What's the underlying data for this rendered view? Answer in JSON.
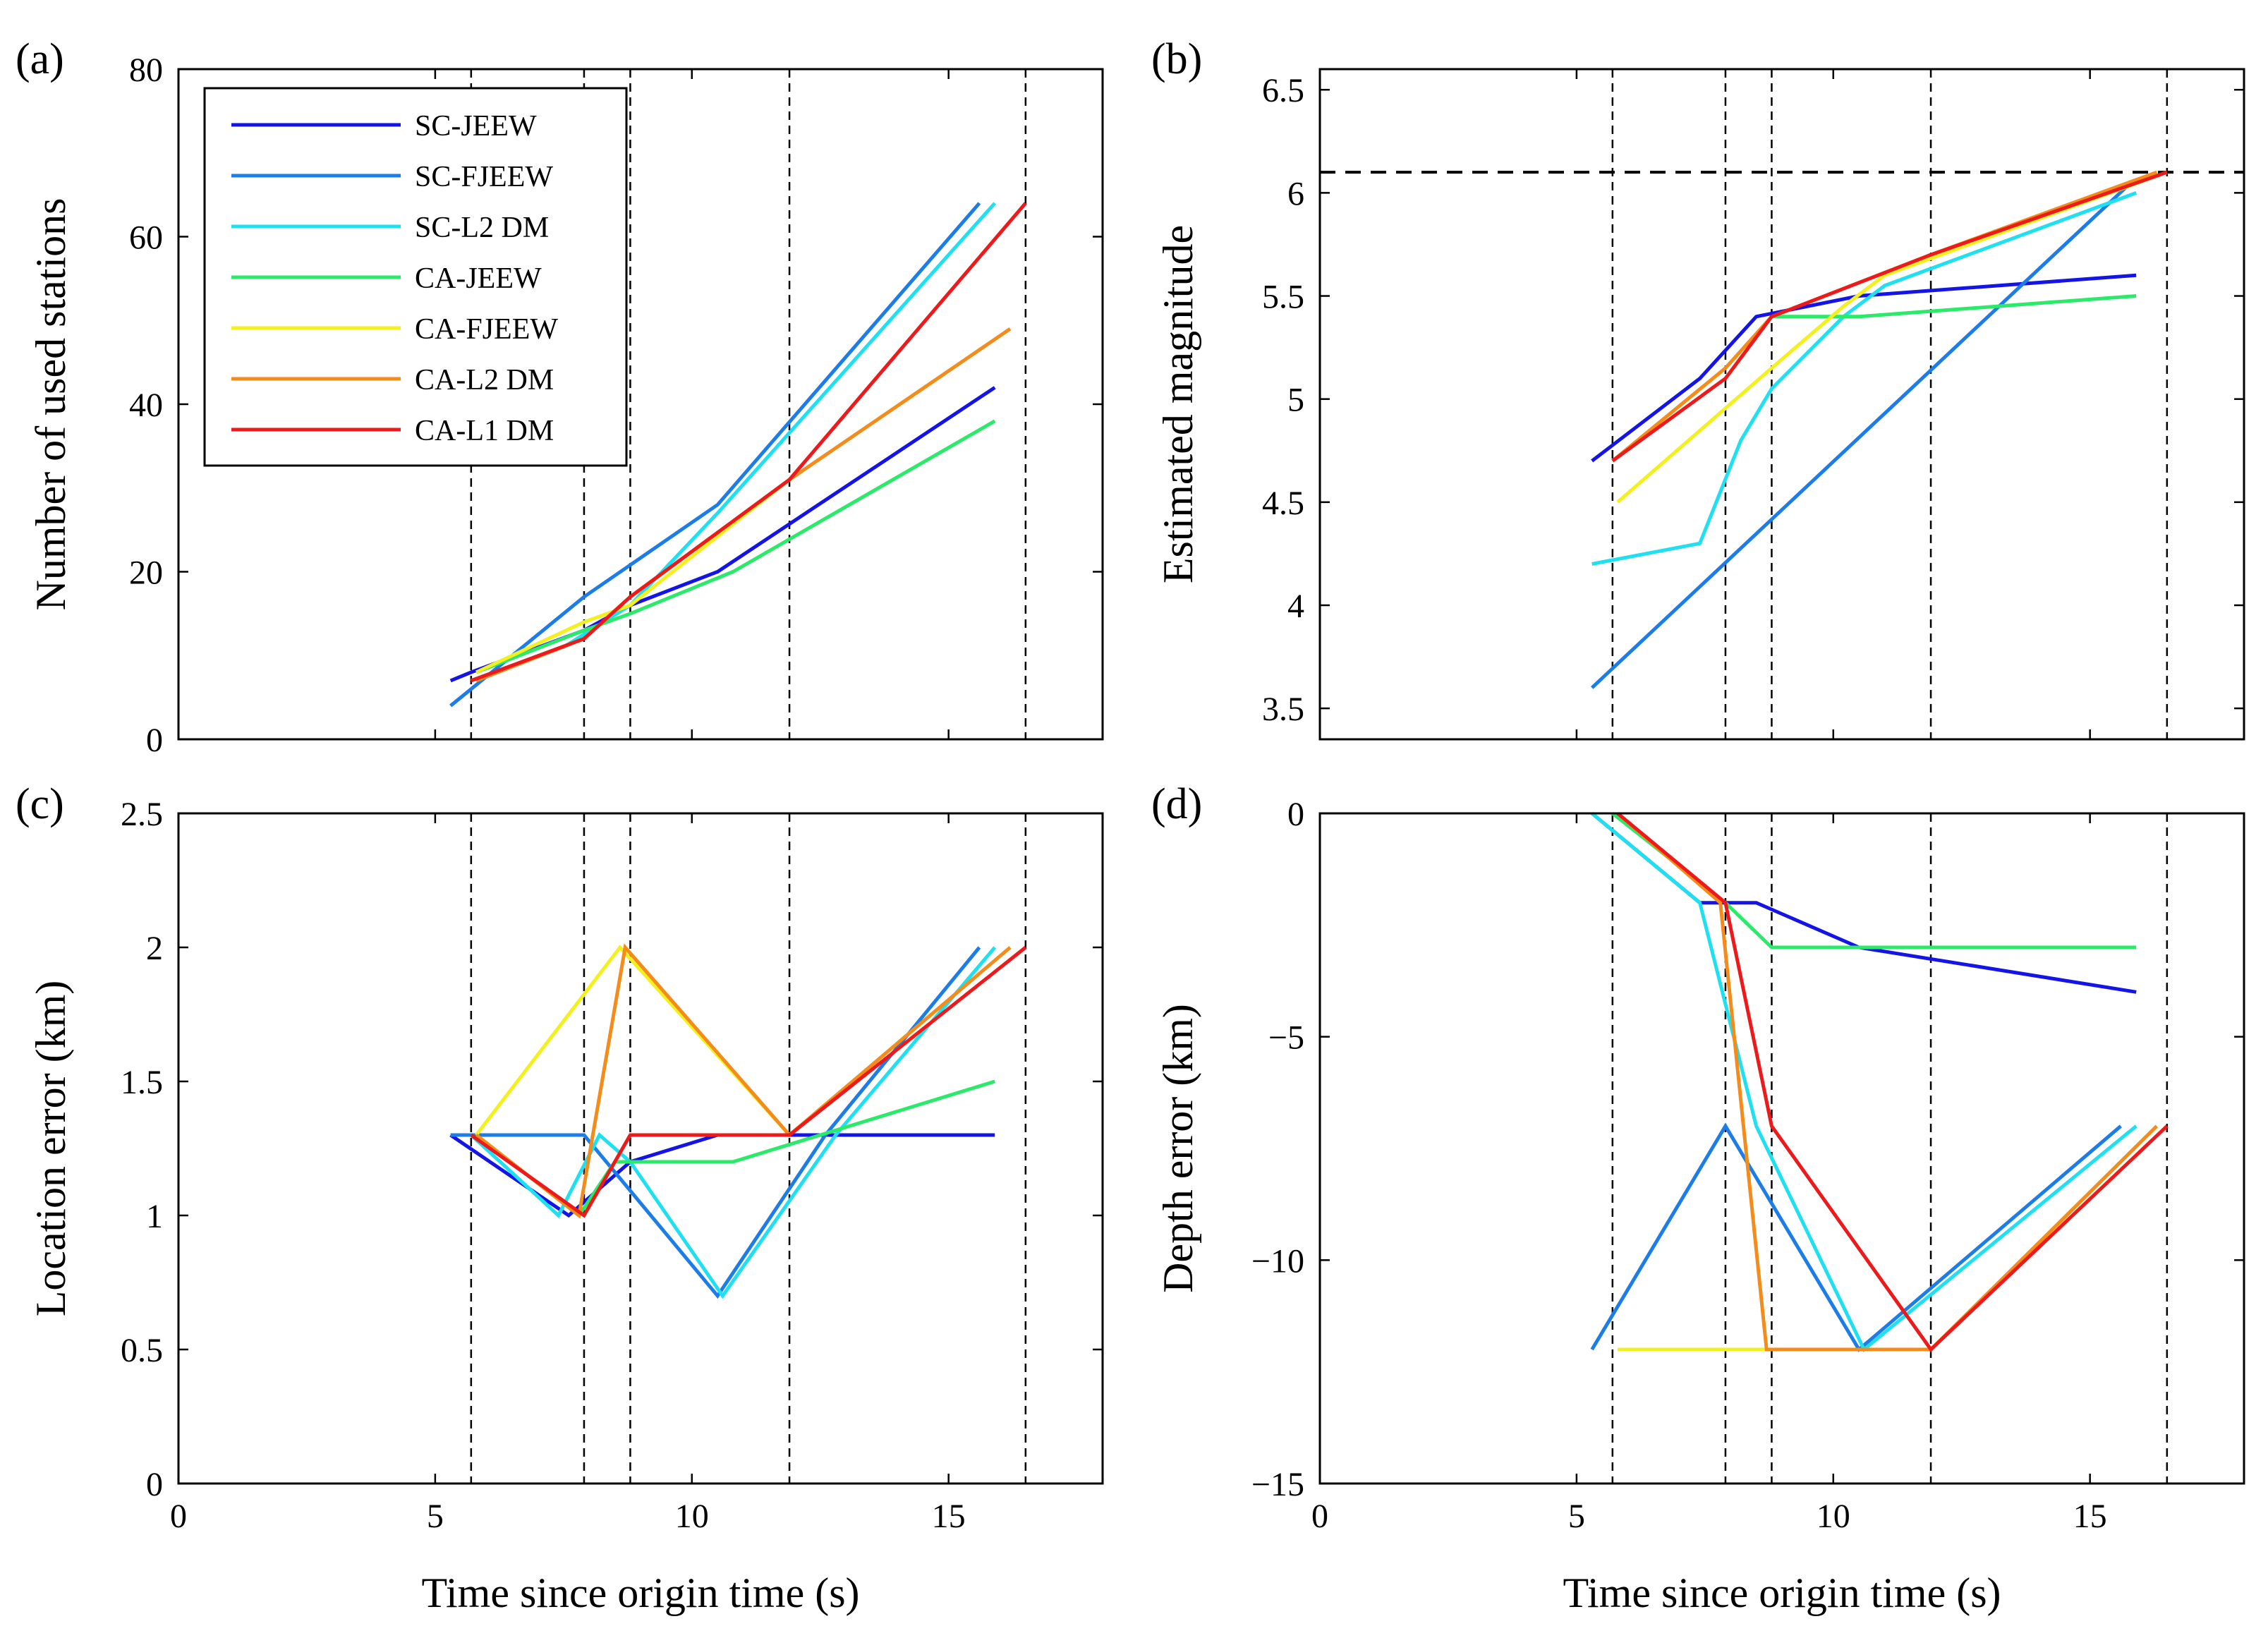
{
  "chart_data": [
    {
      "type": "line",
      "panel_label": "(a)",
      "xlabel": "",
      "ylabel": "Number of used stations",
      "xlim": [
        0,
        18
      ],
      "ylim": [
        0,
        80
      ],
      "xticks": [
        "",
        "",
        "",
        "",
        ""
      ],
      "xtick_values": [
        0,
        5,
        10,
        15
      ],
      "yticks": [
        "0",
        "20",
        "40",
        "60",
        "80"
      ],
      "ytick_values": [
        0,
        20,
        40,
        60,
        80
      ],
      "vlines": [
        5.7,
        7.9,
        8.8,
        11.9,
        16.5
      ],
      "legend": {
        "position": "top-left",
        "entries": [
          "SC-JEEW",
          "SC-FJEEW",
          "SC-L2 DM",
          "CA-JEEW",
          "CA-FJEEW",
          "CA-L2 DM",
          "CA-L1 DM"
        ]
      },
      "series": [
        {
          "name": "SC-JEEW",
          "color": "#1414e6",
          "x": [
            5.3,
            5.7,
            7.9,
            8.8,
            10.5,
            15.9
          ],
          "y": [
            7,
            8,
            13,
            16,
            20,
            42
          ]
        },
        {
          "name": "SC-FJEEW",
          "color": "#1c7ce8",
          "x": [
            5.3,
            6.5,
            7.9,
            10.5,
            15.6
          ],
          "y": [
            4,
            10,
            17,
            28,
            64
          ]
        },
        {
          "name": "SC-L2 DM",
          "color": "#1ee0f0",
          "x": [
            5.7,
            7.5,
            8.8,
            10.5,
            15.9
          ],
          "y": [
            7,
            11,
            16,
            27,
            64
          ]
        },
        {
          "name": "CA-JEEW",
          "color": "#2bea6a",
          "x": [
            5.8,
            7.9,
            8.8,
            10.8,
            15.9
          ],
          "y": [
            8,
            13,
            15,
            20,
            38
          ]
        },
        {
          "name": "CA-FJEEW",
          "color": "#f2f01e",
          "x": [
            5.8,
            7.9,
            8.8,
            11.9
          ],
          "y": [
            8,
            14,
            16,
            31
          ]
        },
        {
          "name": "CA-L2 DM",
          "color": "#f38c1a",
          "x": [
            5.8,
            7.9,
            8.8,
            11.9,
            16.2
          ],
          "y": [
            7,
            12,
            17,
            31,
            49
          ]
        },
        {
          "name": "CA-L1 DM",
          "color": "#ec1a1a",
          "x": [
            5.7,
            7.9,
            8.8,
            11.9,
            16.5
          ],
          "y": [
            7,
            12,
            17,
            31,
            64
          ]
        }
      ]
    },
    {
      "type": "line",
      "panel_label": "(b)",
      "xlabel": "",
      "ylabel": "Estimated magnitude",
      "xlim": [
        0,
        18
      ],
      "ylim": [
        3.35,
        6.6
      ],
      "xticks": [
        "",
        "",
        "",
        "",
        ""
      ],
      "xtick_values": [
        0,
        5,
        10,
        15
      ],
      "yticks": [
        "3.5",
        "4",
        "4.5",
        "5",
        "5.5",
        "6",
        "6.5"
      ],
      "ytick_values": [
        3.5,
        4,
        4.5,
        5,
        5.5,
        6,
        6.5
      ],
      "vlines": [
        5.7,
        7.9,
        8.8,
        11.9,
        16.5
      ],
      "hline": 6.1,
      "series": [
        {
          "name": "SC-JEEW",
          "color": "#1414e6",
          "x": [
            5.3,
            7.4,
            8.5,
            10.5,
            15.9
          ],
          "y": [
            4.7,
            5.1,
            5.4,
            5.5,
            5.6
          ]
        },
        {
          "name": "SC-FJEEW",
          "color": "#1c7ce8",
          "x": [
            5.3,
            15.8
          ],
          "y": [
            3.6,
            6.05
          ]
        },
        {
          "name": "SC-L2 DM",
          "color": "#1ee0f0",
          "x": [
            5.3,
            7.4,
            8.2,
            8.8,
            10.2,
            11.0,
            15.9
          ],
          "y": [
            4.2,
            4.3,
            4.8,
            5.05,
            5.4,
            5.55,
            6.0
          ]
        },
        {
          "name": "CA-JEEW",
          "color": "#2bea6a",
          "x": [
            8.8,
            10.5,
            15.9
          ],
          "y": [
            5.4,
            5.4,
            5.5
          ]
        },
        {
          "name": "CA-FJEEW",
          "color": "#f2f01e",
          "x": [
            5.8,
            8.8,
            10.2,
            11.0,
            16.5
          ],
          "y": [
            4.5,
            5.15,
            5.45,
            5.6,
            6.1
          ]
        },
        {
          "name": "CA-L2 DM",
          "color": "#f38c1a",
          "x": [
            5.7,
            7.9,
            8.8,
            11.9,
            16.3
          ],
          "y": [
            4.7,
            5.15,
            5.4,
            5.7,
            6.1
          ]
        },
        {
          "name": "CA-L1 DM",
          "color": "#ec1a1a",
          "x": [
            5.7,
            7.9,
            8.8,
            11.9,
            16.5
          ],
          "y": [
            4.7,
            5.1,
            5.4,
            5.7,
            6.1
          ]
        }
      ]
    },
    {
      "type": "line",
      "panel_label": "(c)",
      "xlabel": "Time since origin time (s)",
      "ylabel": "Location error (km)",
      "xlim": [
        0,
        18
      ],
      "ylim": [
        0,
        2.5
      ],
      "xticks": [
        "0",
        "5",
        "10",
        "15"
      ],
      "xtick_values": [
        0,
        5,
        10,
        15
      ],
      "yticks": [
        "0",
        "0.5",
        "1",
        "1.5",
        "2",
        "2.5"
      ],
      "ytick_values": [
        0,
        0.5,
        1,
        1.5,
        2,
        2.5
      ],
      "vlines": [
        5.7,
        7.9,
        8.8,
        11.9,
        16.5
      ],
      "series": [
        {
          "name": "SC-JEEW",
          "color": "#1414e6",
          "x": [
            5.3,
            7.6,
            8.8,
            10.5,
            15.9
          ],
          "y": [
            1.3,
            1.0,
            1.2,
            1.3,
            1.3
          ]
        },
        {
          "name": "SC-FJEEW",
          "color": "#1c7ce8",
          "x": [
            5.3,
            7.9,
            10.5,
            12.6,
            15.6
          ],
          "y": [
            1.3,
            1.3,
            0.7,
            1.3,
            2.0
          ]
        },
        {
          "name": "SC-L2 DM",
          "color": "#1ee0f0",
          "x": [
            5.7,
            7.4,
            8.2,
            8.8,
            10.6,
            12.8,
            15.9
          ],
          "y": [
            1.3,
            1.0,
            1.3,
            1.2,
            0.7,
            1.3,
            2.0
          ]
        },
        {
          "name": "CA-JEEW",
          "color": "#2bea6a",
          "x": [
            5.8,
            7.8,
            8.5,
            10.8,
            15.9
          ],
          "y": [
            1.3,
            1.0,
            1.2,
            1.2,
            1.5
          ]
        },
        {
          "name": "CA-FJEEW",
          "color": "#f2f01e",
          "x": [
            5.8,
            8.6,
            11.9
          ],
          "y": [
            1.3,
            2.0,
            1.3
          ]
        },
        {
          "name": "CA-L2 DM",
          "color": "#f38c1a",
          "x": [
            5.8,
            7.8,
            8.7,
            11.9,
            16.2
          ],
          "y": [
            1.3,
            1.0,
            2.0,
            1.3,
            2.0
          ]
        },
        {
          "name": "CA-L1 DM",
          "color": "#ec1a1a",
          "x": [
            5.7,
            7.9,
            8.8,
            11.9,
            16.5
          ],
          "y": [
            1.3,
            1.0,
            1.3,
            1.3,
            2.0
          ]
        }
      ]
    },
    {
      "type": "line",
      "panel_label": "(d)",
      "xlabel": "Time since origin time (s)",
      "ylabel": "Depth error (km)",
      "xlim": [
        0,
        18
      ],
      "ylim": [
        -15,
        0
      ],
      "xticks": [
        "0",
        "5",
        "10",
        "15"
      ],
      "xtick_values": [
        0,
        5,
        10,
        15
      ],
      "yticks": [
        "−15",
        "−10",
        "−5",
        "0"
      ],
      "ytick_values": [
        -15,
        -10,
        -5,
        0
      ],
      "vlines": [
        5.7,
        7.9,
        8.8,
        11.9,
        16.5
      ],
      "series": [
        {
          "name": "SC-JEEW",
          "color": "#1414e6",
          "x": [
            5.3,
            7.4,
            8.5,
            10.5,
            15.9
          ],
          "y": [
            0,
            -2,
            -2,
            -3,
            -4
          ]
        },
        {
          "name": "SC-FJEEW",
          "color": "#1c7ce8",
          "x": [
            5.3,
            7.9,
            10.5,
            15.6
          ],
          "y": [
            -12,
            -7,
            -12,
            -7
          ]
        },
        {
          "name": "SC-L2 DM",
          "color": "#1ee0f0",
          "x": [
            5.3,
            7.4,
            8.5,
            10.6,
            15.9
          ],
          "y": [
            0,
            -2,
            -7,
            -12,
            -7
          ]
        },
        {
          "name": "CA-JEEW",
          "color": "#2bea6a",
          "x": [
            5.7,
            7.9,
            8.8,
            15.9
          ],
          "y": [
            0,
            -2,
            -3,
            -3
          ]
        },
        {
          "name": "CA-FJEEW",
          "color": "#f2f01e",
          "x": [
            5.8,
            11.9
          ],
          "y": [
            -12,
            -12
          ]
        },
        {
          "name": "CA-L2 DM",
          "color": "#f38c1a",
          "x": [
            5.8,
            7.8,
            8.7,
            11.9,
            16.3
          ],
          "y": [
            0,
            -2,
            -12,
            -12,
            -7
          ]
        },
        {
          "name": "CA-L1 DM",
          "color": "#ec1a1a",
          "x": [
            5.8,
            7.9,
            8.8,
            11.9,
            16.5
          ],
          "y": [
            0,
            -2,
            -7,
            -12,
            -7
          ]
        }
      ]
    }
  ]
}
